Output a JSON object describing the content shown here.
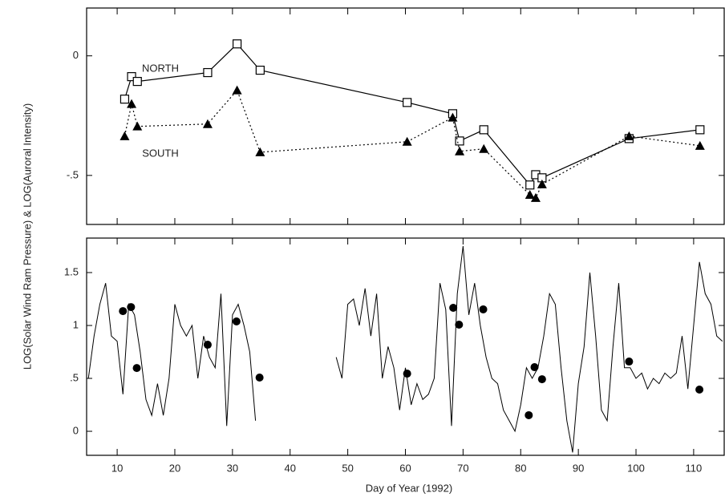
{
  "chart_data": [
    {
      "type": "line",
      "ylabel": "LOG(Solar Wind Ram Pressure) & LOG(Auroral Intensity)",
      "xlim": [
        4.7,
        115.3
      ],
      "ylim": [
        -0.705,
        0.2
      ],
      "yticks": [
        0,
        {
          "value": -0.5,
          "label": "-.5"
        }
      ],
      "x": [
        11.3,
        12.5,
        13.5,
        25.7,
        30.8,
        34.8,
        60.3,
        68.2,
        69.4,
        73.6,
        81.6,
        82.6,
        83.7,
        98.8,
        111.1
      ],
      "series": [
        {
          "name": "NORTH",
          "color": "#000000",
          "marker": "square",
          "dash": false,
          "values": [
            -0.181,
            -0.087,
            -0.107,
            -0.07,
            0.05,
            -0.06,
            -0.195,
            -0.242,
            -0.356,
            -0.309,
            -0.54,
            -0.497,
            -0.51,
            -0.346,
            -0.309
          ]
        },
        {
          "name": "SOUTH",
          "color": "#000000",
          "marker": "triangle",
          "dash": true,
          "values": [
            -0.336,
            -0.201,
            -0.295,
            -0.285,
            -0.144,
            -0.403,
            -0.359,
            -0.258,
            -0.399,
            -0.389,
            -0.581,
            -0.594,
            -0.537,
            -0.336,
            -0.376
          ]
        }
      ]
    },
    {
      "type": "line",
      "xlabel": "Day of Year (1992)",
      "xlim": [
        4.7,
        115.3
      ],
      "ylim": [
        -0.227,
        1.826
      ],
      "xticks": [
        10,
        20,
        30,
        40,
        50,
        60,
        70,
        80,
        90,
        100,
        110
      ],
      "yticks": [
        0,
        {
          "value": 0.5,
          "label": ".5"
        },
        1,
        1.5
      ],
      "series": [
        {
          "color": "#000000",
          "marker": "none",
          "dash": false,
          "x": [
            5,
            6,
            7,
            8,
            9,
            10,
            11,
            12,
            13,
            14,
            15,
            16,
            17,
            18,
            19,
            20,
            21,
            22,
            23,
            24,
            25,
            26,
            27,
            28,
            29,
            30,
            31,
            32,
            33,
            34,
            35,
            36,
            37,
            38,
            39,
            40,
            41,
            42,
            43,
            44,
            45,
            46,
            47,
            48,
            49,
            50,
            51,
            52,
            53,
            54,
            55,
            56,
            57,
            58,
            59,
            60,
            61,
            62,
            63,
            64,
            65,
            66,
            67,
            68,
            69,
            70,
            71,
            72,
            73,
            74,
            75,
            76,
            77,
            78,
            79,
            80,
            81,
            82,
            83,
            84,
            85,
            86,
            87,
            88,
            89,
            90,
            91,
            92,
            93,
            94,
            95,
            96,
            97,
            98,
            99,
            100,
            101,
            102,
            103,
            104,
            105,
            106,
            107,
            108,
            109,
            110,
            111,
            112,
            113,
            114,
            115
          ],
          "values": [
            0.5,
            0.9,
            1.2,
            1.4,
            0.9,
            0.85,
            0.35,
            1.2,
            1.1,
            0.75,
            0.3,
            0.15,
            0.45,
            0.15,
            0.5,
            1.2,
            1.0,
            0.9,
            1.0,
            0.5,
            0.9,
            0.7,
            0.6,
            1.3,
            0.05,
            1.1,
            1.2,
            1.0,
            0.75,
            0.1,
            null,
            null,
            null,
            null,
            null,
            null,
            null,
            null,
            null,
            null,
            null,
            null,
            null,
            0.7,
            0.5,
            1.2,
            1.25,
            1.0,
            1.35,
            0.9,
            1.3,
            0.5,
            0.8,
            0.6,
            0.2,
            0.6,
            0.25,
            0.45,
            0.3,
            0.35,
            0.5,
            1.4,
            1.15,
            0.05,
            1.3,
            1.75,
            1.1,
            1.4,
            1.0,
            0.7,
            0.5,
            0.45,
            0.2,
            0.1,
            0.0,
            0.25,
            0.6,
            0.5,
            0.6,
            0.9,
            1.3,
            1.2,
            0.6,
            0.1,
            -0.2,
            0.45,
            0.8,
            1.5,
            0.9,
            0.2,
            0.1,
            0.8,
            1.4,
            0.6,
            0.6,
            0.5,
            0.55,
            0.4,
            0.5,
            0.45,
            0.55,
            0.5,
            0.55,
            0.9,
            0.4,
            1.0,
            1.6,
            1.3,
            1.2,
            0.9,
            0.85
          ]
        },
        {
          "color": "#000000",
          "marker": "circle",
          "dash": false,
          "noline": true,
          "x": [
            11.0,
            12.4,
            13.4,
            25.7,
            30.7,
            34.7,
            60.3,
            68.3,
            69.3,
            73.5,
            81.4,
            82.4,
            83.7,
            98.8,
            111.0
          ],
          "values": [
            1.136,
            1.174,
            0.598,
            0.818,
            1.038,
            0.508,
            0.545,
            1.167,
            1.008,
            1.152,
            0.152,
            0.606,
            0.492,
            0.659,
            0.394
          ]
        }
      ]
    }
  ]
}
